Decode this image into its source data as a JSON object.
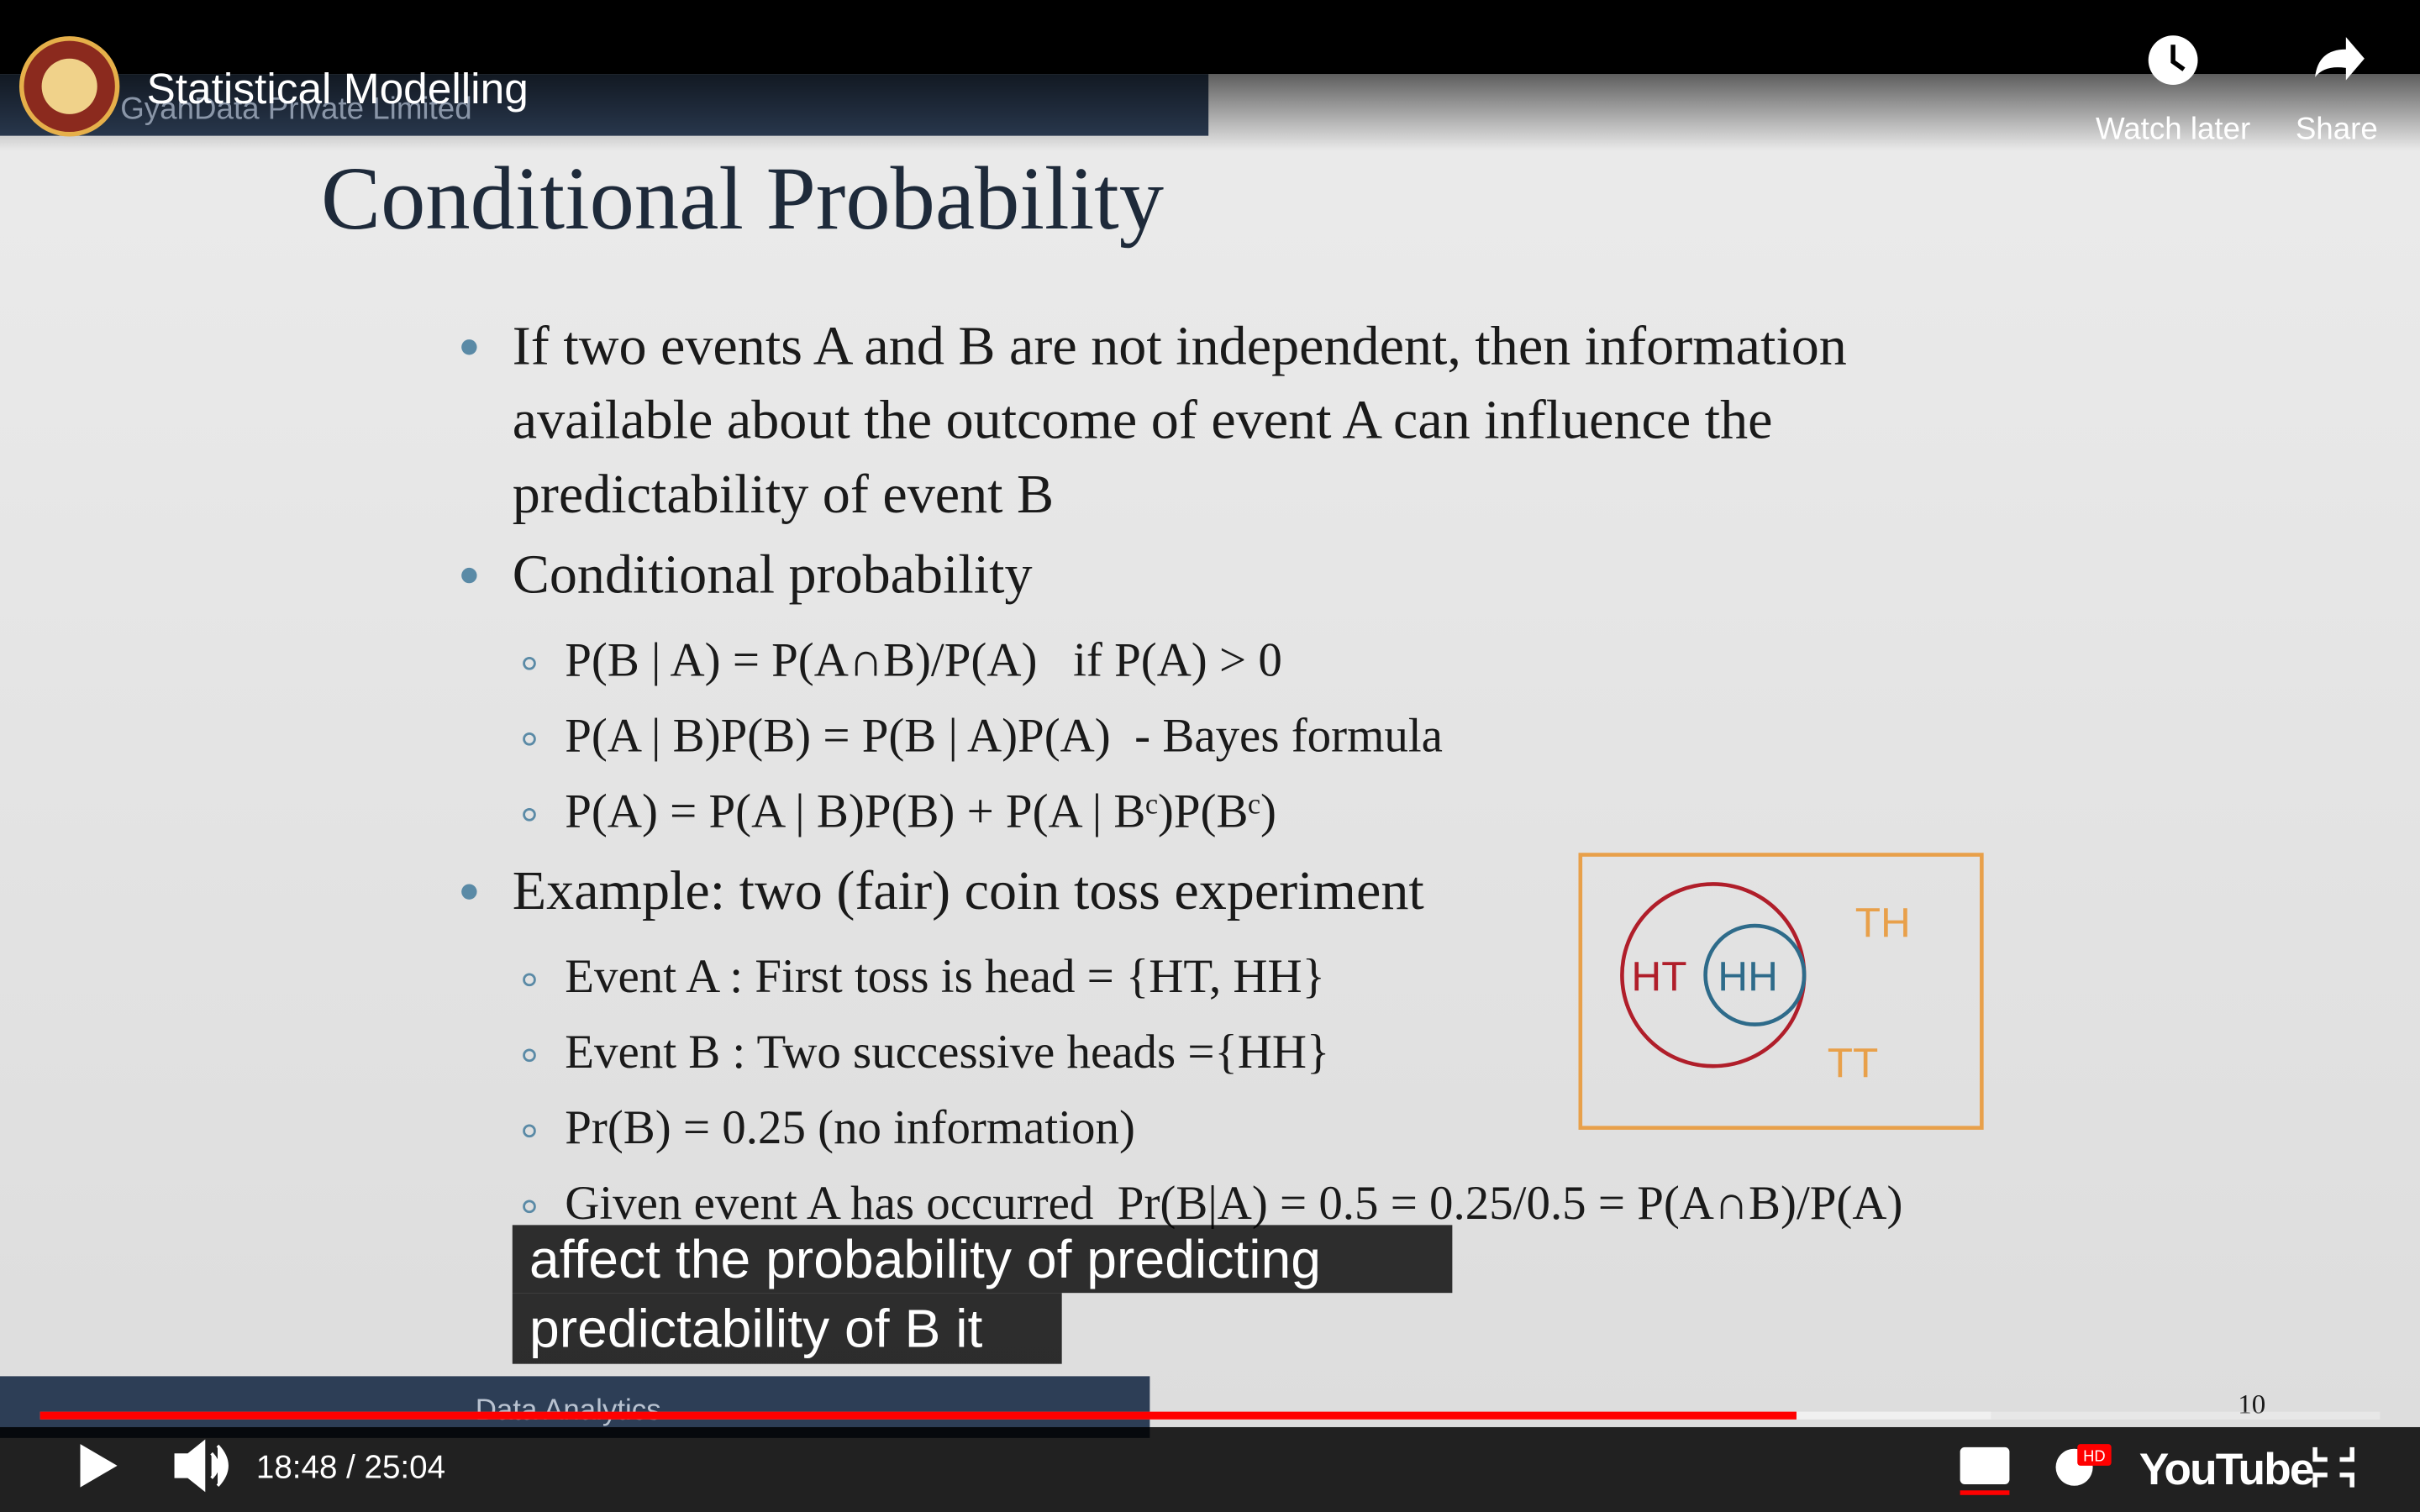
{
  "player": {
    "title": "Statistical Modelling",
    "watch_later": "Watch later",
    "share": "Share",
    "time": "18:48 / 25:04",
    "logo": "YouTube",
    "hd": "HD"
  },
  "slide": {
    "watermark": "GyanData Private Limited",
    "title": "Conditional Probability",
    "bullets": [
      {
        "lines": [
          "If two events A and B are not independent, then information",
          "available about the outcome of event A can influence the",
          "predictability of event B"
        ]
      },
      {
        "lines": [
          "Conditional probability"
        ],
        "subs": [
          "P(B | A) = P(A∩B)/P(A)   if P(A) > 0",
          "P(A | B)P(B) = P(B | A)P(A)  - Bayes formula",
          "P(A) = P(A | B)P(B) + P(A | Bᶜ)P(Bᶜ)"
        ]
      },
      {
        "lines": [
          "Example: two (fair) coin toss experiment"
        ],
        "subs": [
          "Event A : First toss is head = {HT, HH}",
          "Event B : Two successive heads ={HH}",
          "Pr(B) = 0.25 (no information)",
          "Given event A has occurred  Pr(B|A) = 0.5 = 0.25/0.5 = P(A∩B)/P(A)"
        ]
      }
    ],
    "venn": {
      "outer": "HT",
      "inner": "HH",
      "right_top": "TH",
      "right_bottom": "TT"
    },
    "footer": "Data Analytics",
    "page": "10"
  },
  "captions": [
    "affect the probability of predicting",
    "predictability of B it"
  ]
}
